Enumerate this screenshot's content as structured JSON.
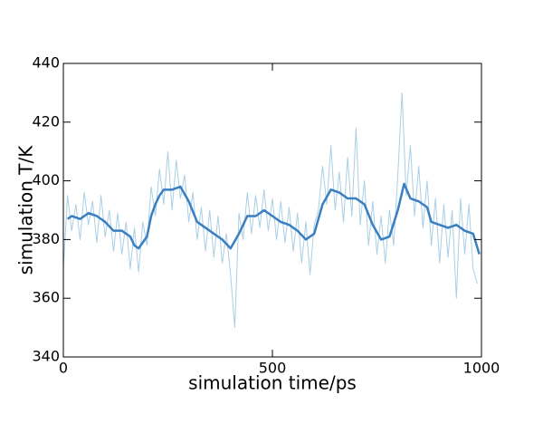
{
  "chart_data": {
    "type": "line",
    "xlabel": "simulation time/ps",
    "ylabel": "simulation T/K",
    "xlim": [
      0,
      1000
    ],
    "xticks": [
      0,
      500,
      1000
    ],
    "ylim": [
      340,
      440
    ],
    "yticks": [
      340,
      360,
      380,
      400,
      420,
      440
    ],
    "series": [
      {
        "color": "#a9cfe6",
        "width": 1,
        "x": [
          0,
          10,
          20,
          30,
          40,
          50,
          60,
          70,
          80,
          90,
          100,
          110,
          120,
          130,
          140,
          150,
          160,
          170,
          180,
          190,
          200,
          210,
          220,
          230,
          240,
          250,
          260,
          270,
          280,
          290,
          300,
          310,
          320,
          330,
          340,
          350,
          360,
          370,
          380,
          390,
          400,
          410,
          420,
          430,
          440,
          450,
          460,
          470,
          480,
          490,
          500,
          510,
          520,
          530,
          540,
          550,
          560,
          570,
          580,
          590,
          600,
          610,
          620,
          630,
          640,
          650,
          660,
          670,
          680,
          690,
          700,
          710,
          720,
          730,
          740,
          750,
          760,
          770,
          780,
          790,
          800,
          810,
          820,
          830,
          840,
          850,
          860,
          870,
          880,
          890,
          900,
          910,
          920,
          930,
          940,
          950,
          960,
          970,
          980,
          990
        ],
        "values": [
          370,
          395,
          383,
          392,
          380,
          396,
          385,
          393,
          379,
          395,
          381,
          390,
          376,
          389,
          375,
          386,
          370,
          384,
          369,
          386,
          378,
          398,
          388,
          404,
          392,
          410,
          390,
          407,
          394,
          402,
          386,
          396,
          380,
          391,
          376,
          390,
          374,
          388,
          372,
          382,
          368,
          350,
          389,
          380,
          396,
          382,
          395,
          384,
          397,
          383,
          394,
          380,
          393,
          379,
          391,
          376,
          389,
          372,
          386,
          368,
          385,
          390,
          405,
          392,
          412,
          390,
          403,
          386,
          408,
          388,
          418,
          385,
          400,
          378,
          393,
          375,
          388,
          372,
          390,
          378,
          402,
          430,
          395,
          412,
          388,
          405,
          384,
          400,
          378,
          394,
          372,
          392,
          374,
          390,
          360,
          394,
          375,
          392,
          370,
          365
        ]
      },
      {
        "color": "#3a7fc0",
        "width": 2.5,
        "x": [
          10,
          20,
          40,
          60,
          80,
          100,
          120,
          140,
          160,
          170,
          180,
          190,
          200,
          210,
          220,
          230,
          240,
          260,
          280,
          300,
          320,
          340,
          360,
          380,
          400,
          420,
          440,
          460,
          480,
          500,
          520,
          540,
          560,
          580,
          600,
          620,
          640,
          660,
          680,
          700,
          720,
          740,
          760,
          780,
          800,
          815,
          830,
          850,
          870,
          880,
          900,
          920,
          940,
          960,
          980,
          995
        ],
        "values": [
          387,
          388,
          387,
          389,
          388,
          386,
          383,
          383,
          381,
          378,
          377,
          379,
          381,
          388,
          392,
          395,
          397,
          397,
          398,
          393,
          386,
          384,
          382,
          380,
          377,
          382,
          388,
          388,
          390,
          388,
          386,
          385,
          383,
          380,
          382,
          392,
          397,
          396,
          394,
          394,
          392,
          385,
          380,
          381,
          390,
          399,
          394,
          393,
          391,
          386,
          385,
          384,
          385,
          383,
          382,
          375
        ]
      }
    ]
  }
}
